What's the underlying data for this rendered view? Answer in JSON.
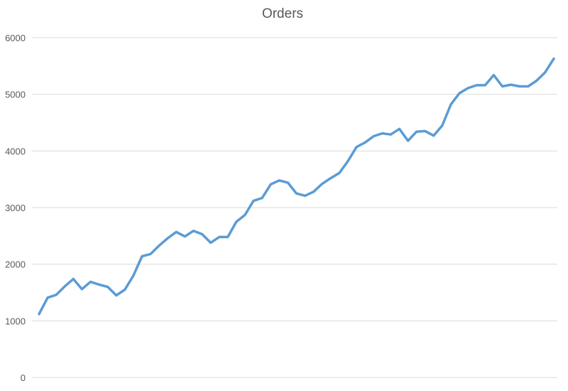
{
  "chart_data": {
    "type": "line",
    "title": "Orders",
    "xlabel": "",
    "ylabel": "",
    "ylim": [
      0,
      6000
    ],
    "yticks": [
      0,
      1000,
      2000,
      3000,
      4000,
      5000,
      6000
    ],
    "grid": true,
    "legend": "none",
    "series": [
      {
        "color": "#5b9bd5",
        "values": [
          1120,
          1410,
          1460,
          1610,
          1740,
          1560,
          1690,
          1640,
          1600,
          1450,
          1550,
          1800,
          2140,
          2180,
          2330,
          2460,
          2570,
          2490,
          2590,
          2530,
          2380,
          2480,
          2480,
          2750,
          2870,
          3120,
          3170,
          3410,
          3480,
          3440,
          3250,
          3210,
          3280,
          3420,
          3520,
          3610,
          3820,
          4070,
          4150,
          4260,
          4310,
          4290,
          4390,
          4180,
          4340,
          4350,
          4270,
          4450,
          4820,
          5020,
          5110,
          5160,
          5160,
          5340,
          5140,
          5170,
          5140,
          5140,
          5240,
          5390,
          5630
        ]
      }
    ]
  }
}
